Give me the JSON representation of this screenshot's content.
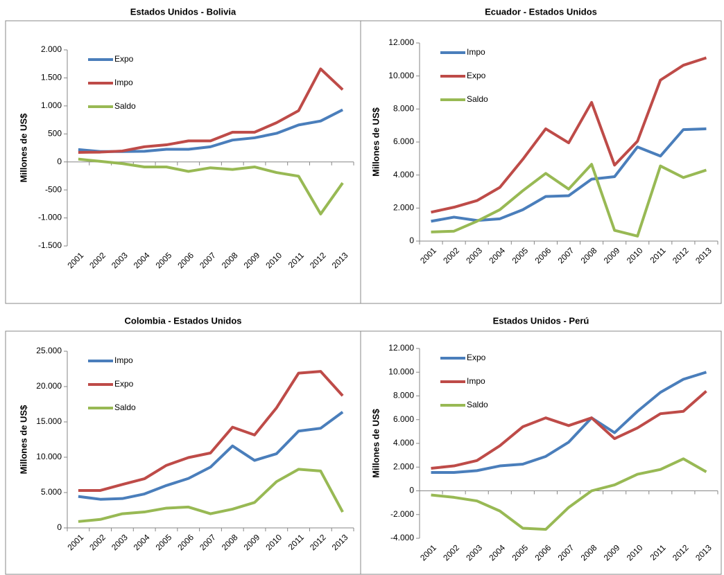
{
  "chart_data": [
    {
      "type": "line",
      "title": "Estados Unidos - Bolivia",
      "y_label": "Millones de US$",
      "legend": "upper left",
      "categories": [
        "2001",
        "2002",
        "2003",
        "2004",
        "2005",
        "2006",
        "2007",
        "2008",
        "2009",
        "2010",
        "2011",
        "2012",
        "2013"
      ],
      "ylim": [
        -1500,
        2000
      ],
      "yticks": [
        {
          "value": -1500,
          "label": "-1.500"
        },
        {
          "value": -1000,
          "label": "-1.000"
        },
        -500,
        0,
        500,
        {
          "value": 1000,
          "label": "1.000"
        },
        {
          "value": 1500,
          "label": "1.500"
        },
        {
          "value": 2000,
          "label": "2.000"
        }
      ],
      "series": [
        {
          "name": "Expo",
          "color": "#4a7ebb",
          "values": [
            220,
            185,
            185,
            190,
            225,
            225,
            270,
            390,
            430,
            510,
            660,
            730,
            930
          ]
        },
        {
          "name": "Impo",
          "color": "#be4b48",
          "values": [
            170,
            175,
            195,
            270,
            305,
            375,
            375,
            530,
            530,
            700,
            915,
            1660,
            1290
          ]
        },
        {
          "name": "Saldo",
          "color": "#98b954",
          "values": [
            50,
            10,
            -30,
            -90,
            -90,
            -170,
            -105,
            -135,
            -90,
            -190,
            -255,
            -930,
            -375
          ]
        }
      ]
    },
    {
      "type": "line",
      "title": "Ecuador - Estados Unidos",
      "y_label": "Millones de US$",
      "legend": "upper left",
      "categories": [
        "2001",
        "2002",
        "2003",
        "2004",
        "2005",
        "2006",
        "2007",
        "2008",
        "2009",
        "2010",
        "2011",
        "2012",
        "2013"
      ],
      "ylim": [
        0,
        12000
      ],
      "yticks": [
        0,
        {
          "value": 2000,
          "label": "2.000"
        },
        {
          "value": 4000,
          "label": "4.000"
        },
        {
          "value": 6000,
          "label": "6.000"
        },
        {
          "value": 8000,
          "label": "8.000"
        },
        {
          "value": 10000,
          "label": "10.000"
        },
        {
          "value": 12000,
          "label": "12.000"
        }
      ],
      "series": [
        {
          "name": "Impo",
          "color": "#4a7ebb",
          "values": [
            1200,
            1450,
            1250,
            1350,
            1900,
            2700,
            2750,
            3750,
            3900,
            5700,
            5150,
            6750,
            6800
          ]
        },
        {
          "name": "Expo",
          "color": "#be4b48",
          "values": [
            1750,
            2050,
            2450,
            3250,
            4950,
            6800,
            5950,
            8400,
            4600,
            6050,
            9750,
            10650,
            11100
          ]
        },
        {
          "name": "Saldo",
          "color": "#98b954",
          "values": [
            550,
            600,
            1200,
            1900,
            3050,
            4100,
            3150,
            4650,
            650,
            300,
            4550,
            3850,
            4300
          ]
        }
      ]
    },
    {
      "type": "line",
      "title": "Colombia - Estados Unidos",
      "y_label": "Millones de US$",
      "legend": "upper left",
      "categories": [
        "2001",
        "2002",
        "2003",
        "2004",
        "2005",
        "2006",
        "2007",
        "2008",
        "2009",
        "2010",
        "2011",
        "2012",
        "2013"
      ],
      "ylim": [
        0,
        25000
      ],
      "yticks": [
        0,
        {
          "value": 5000,
          "label": "5.000"
        },
        {
          "value": 10000,
          "label": "10.000"
        },
        {
          "value": 15000,
          "label": "15.000"
        },
        {
          "value": 20000,
          "label": "20.000"
        },
        {
          "value": 25000,
          "label": "25.000"
        }
      ],
      "series": [
        {
          "name": "Impo",
          "color": "#4a7ebb",
          "values": [
            4450,
            4050,
            4150,
            4800,
            6000,
            7000,
            8600,
            11600,
            9550,
            10500,
            13700,
            14100,
            16400
          ]
        },
        {
          "name": "Expo",
          "color": "#be4b48",
          "values": [
            5300,
            5300,
            6150,
            6950,
            8850,
            9950,
            10600,
            14250,
            13150,
            17000,
            21900,
            22150,
            18700
          ]
        },
        {
          "name": "Saldo",
          "color": "#98b954",
          "values": [
            900,
            1200,
            2000,
            2250,
            2800,
            2950,
            2000,
            2650,
            3600,
            6550,
            8300,
            8050,
            2250
          ]
        }
      ]
    },
    {
      "type": "line",
      "title": "Estados Unidos  - Perú",
      "y_label": "Millones de US$",
      "legend": "upper left",
      "categories": [
        "2001",
        "2002",
        "2003",
        "2004",
        "2005",
        "2006",
        "2007",
        "2008",
        "2009",
        "2010",
        "2011",
        "2012",
        "2013"
      ],
      "ylim": [
        -4000,
        12000
      ],
      "yticks": [
        {
          "value": -4000,
          "label": "-4.000"
        },
        {
          "value": -2000,
          "label": "-2.000"
        },
        0,
        {
          "value": 2000,
          "label": "2.000"
        },
        {
          "value": 4000,
          "label": "4.000"
        },
        {
          "value": 6000,
          "label": "6.000"
        },
        {
          "value": 8000,
          "label": "8.000"
        },
        {
          "value": 10000,
          "label": "10.000"
        },
        {
          "value": 12000,
          "label": "12.000"
        }
      ],
      "series": [
        {
          "name": "Expo",
          "color": "#4a7ebb",
          "values": [
            1550,
            1550,
            1700,
            2100,
            2250,
            2900,
            4100,
            6150,
            4900,
            6700,
            8300,
            9400,
            10000
          ]
        },
        {
          "name": "Impo",
          "color": "#be4b48",
          "values": [
            1900,
            2100,
            2550,
            3800,
            5400,
            6150,
            5500,
            6150,
            4400,
            5300,
            6500,
            6700,
            8400
          ]
        },
        {
          "name": "Saldo",
          "color": "#98b954",
          "values": [
            -350,
            -550,
            -850,
            -1700,
            -3150,
            -3250,
            -1400,
            0,
            500,
            1400,
            1800,
            2700,
            1600
          ]
        }
      ]
    }
  ]
}
